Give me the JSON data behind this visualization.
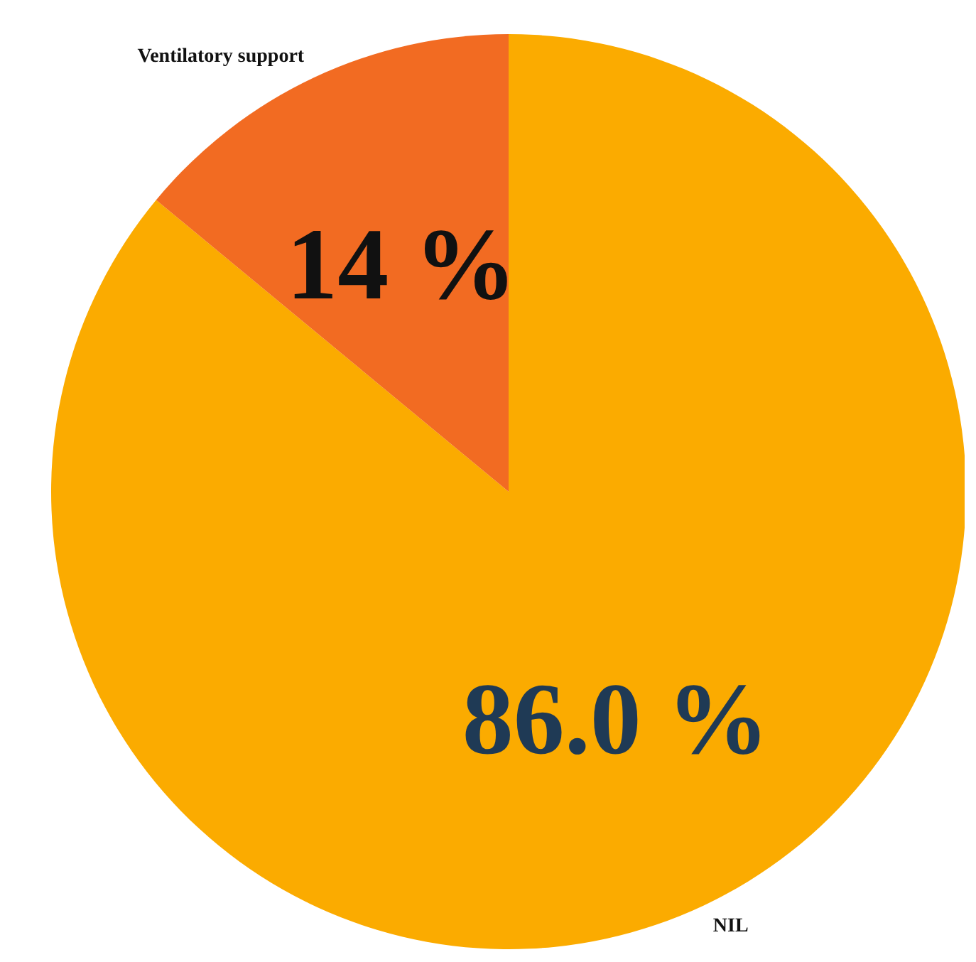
{
  "chart_data": {
    "type": "pie",
    "categories": [
      "NIL",
      "Ventilatory support"
    ],
    "values": [
      86.0,
      14
    ],
    "colors": [
      "#fbab00",
      "#f26b22"
    ],
    "value_labels": [
      "86.0 %",
      "14 %"
    ]
  }
}
